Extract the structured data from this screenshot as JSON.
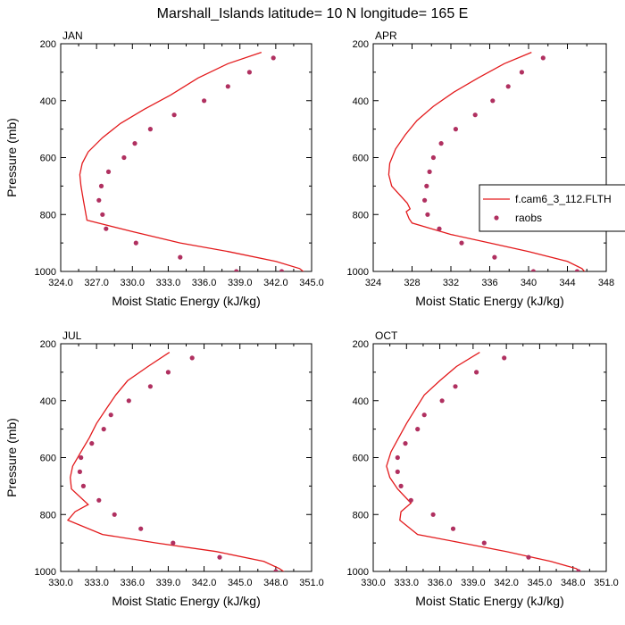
{
  "title": "Marshall_Islands  latitude= 10 N longitude= 165 E",
  "colors": {
    "model": "#e31a1c",
    "obs": "#b03060",
    "axis": "#000000"
  },
  "legend": {
    "model_label": "f.cam6_3_112.FLTH",
    "obs_label": "raobs"
  },
  "chart_data": [
    {
      "type": "line",
      "panel": "JAN",
      "title": "JAN",
      "xlabel": "Moist Static Energy (kJ/kg)",
      "ylabel": "Pressure (mb)",
      "xlim": [
        324,
        345
      ],
      "ylim": [
        1000,
        200
      ],
      "xticks": [
        324,
        327,
        330,
        333,
        336,
        339,
        342,
        345
      ],
      "xtick_labels": [
        "324.0",
        "327.0",
        "330.0",
        "333.0",
        "336.0",
        "339.0",
        "342.0",
        "345.0"
      ],
      "yticks": [
        200,
        400,
        600,
        800,
        1000
      ],
      "ytick_labels": [
        "200",
        "400",
        "600",
        "800",
        "1000"
      ],
      "series": [
        {
          "name": "f.cam6_3_112.FLTH",
          "kind": "line",
          "x": [
            340.8,
            338.0,
            335.5,
            333.2,
            331.0,
            329.0,
            327.5,
            326.3,
            325.8,
            325.6,
            325.7,
            325.9,
            326.2,
            330.0,
            334.0,
            338.0,
            342.0,
            344.0,
            344.6
          ],
          "y": [
            230,
            270,
            320,
            380,
            430,
            480,
            530,
            580,
            620,
            660,
            700,
            750,
            820,
            860,
            900,
            930,
            965,
            990,
            1010
          ]
        },
        {
          "name": "raobs",
          "kind": "scatter",
          "x": [
            341.8,
            339.8,
            338.0,
            336.0,
            333.5,
            331.5,
            330.2,
            329.3,
            328.0,
            327.4,
            327.2,
            327.5,
            327.8,
            330.3,
            334.0,
            338.7,
            342.5
          ],
          "y": [
            250,
            300,
            350,
            400,
            450,
            500,
            550,
            600,
            650,
            700,
            750,
            800,
            850,
            900,
            950,
            1000,
            1000
          ]
        }
      ]
    },
    {
      "type": "line",
      "panel": "APR",
      "title": "APR",
      "xlabel": "Moist Static Energy (kJ/kg)",
      "ylabel": "",
      "xlim": [
        324,
        348
      ],
      "ylim": [
        1000,
        200
      ],
      "xticks": [
        324,
        328,
        332,
        336,
        340,
        344,
        348
      ],
      "xtick_labels": [
        "324",
        "328",
        "332",
        "336",
        "340",
        "344",
        "348"
      ],
      "yticks": [
        200,
        400,
        600,
        800,
        1000
      ],
      "ytick_labels": [
        "200",
        "400",
        "600",
        "800",
        "1000"
      ],
      "series": [
        {
          "name": "f.cam6_3_112.FLTH",
          "kind": "line",
          "x": [
            340.3,
            337.5,
            334.8,
            332.3,
            330.2,
            328.5,
            327.3,
            326.3,
            325.7,
            325.6,
            325.9,
            327.5,
            327.8,
            327.4,
            327.7,
            328.0,
            332.0,
            336.0,
            340.0,
            344.0,
            345.5,
            346.0
          ],
          "y": [
            230,
            270,
            320,
            370,
            420,
            470,
            520,
            570,
            620,
            660,
            700,
            760,
            780,
            790,
            815,
            830,
            870,
            900,
            930,
            965,
            990,
            1010
          ]
        },
        {
          "name": "raobs",
          "kind": "scatter",
          "x": [
            341.5,
            339.3,
            337.9,
            336.3,
            334.5,
            332.5,
            331.0,
            330.2,
            329.8,
            329.5,
            329.3,
            329.6,
            330.8,
            333.1,
            336.5,
            340.5,
            345.0
          ],
          "y": [
            250,
            300,
            350,
            400,
            450,
            500,
            550,
            600,
            650,
            700,
            750,
            800,
            850,
            900,
            950,
            1000,
            1000
          ]
        }
      ]
    },
    {
      "type": "line",
      "panel": "JUL",
      "title": "JUL",
      "xlabel": "Moist Static Energy (kJ/kg)",
      "ylabel": "Pressure (mb)",
      "xlim": [
        330,
        351
      ],
      "ylim": [
        1000,
        200
      ],
      "xticks": [
        330,
        333,
        336,
        339,
        342,
        345,
        348,
        351
      ],
      "xtick_labels": [
        "330.0",
        "333.0",
        "336.0",
        "339.0",
        "342.0",
        "345.0",
        "348.0",
        "351.0"
      ],
      "yticks": [
        200,
        400,
        600,
        800,
        1000
      ],
      "ytick_labels": [
        "200",
        "400",
        "600",
        "800",
        "1000"
      ],
      "series": [
        {
          "name": "f.cam6_3_112.FLTH",
          "kind": "line",
          "x": [
            339.1,
            337.3,
            335.6,
            334.6,
            333.8,
            333.0,
            332.4,
            331.7,
            331.0,
            330.8,
            330.9,
            332.3,
            331.2,
            330.6,
            333.5,
            338.0,
            343.0,
            347.0,
            348.3,
            349.0
          ],
          "y": [
            230,
            280,
            330,
            380,
            430,
            480,
            530,
            580,
            630,
            670,
            710,
            765,
            790,
            820,
            870,
            900,
            930,
            965,
            990,
            1010
          ]
        },
        {
          "name": "raobs",
          "kind": "scatter",
          "x": [
            341.0,
            339.0,
            337.5,
            335.7,
            334.2,
            333.6,
            332.6,
            331.7,
            331.6,
            331.9,
            333.2,
            334.5,
            336.7,
            339.4,
            343.3,
            348.0
          ],
          "y": [
            250,
            300,
            350,
            400,
            450,
            500,
            550,
            600,
            650,
            700,
            750,
            800,
            850,
            900,
            950,
            1000
          ]
        }
      ]
    },
    {
      "type": "line",
      "panel": "OCT",
      "title": "OCT",
      "xlabel": "Moist Static Energy (kJ/kg)",
      "ylabel": "",
      "xlim": [
        330,
        351
      ],
      "ylim": [
        1000,
        200
      ],
      "xticks": [
        330,
        333,
        336,
        339,
        342,
        345,
        348,
        351
      ],
      "xtick_labels": [
        "330.0",
        "333.0",
        "336.0",
        "339.0",
        "342.0",
        "345.0",
        "348.0",
        "351.0"
      ],
      "yticks": [
        200,
        400,
        600,
        800,
        1000
      ],
      "ytick_labels": [
        "200",
        "400",
        "600",
        "800",
        "1000"
      ],
      "series": [
        {
          "name": "f.cam6_3_112.FLTH",
          "kind": "line",
          "x": [
            339.6,
            337.5,
            336.0,
            334.6,
            333.8,
            333.0,
            332.3,
            331.6,
            331.2,
            331.5,
            332.2,
            333.4,
            332.5,
            332.4,
            334.0,
            338.0,
            342.0,
            346.0,
            348.3,
            349.0
          ],
          "y": [
            230,
            280,
            330,
            380,
            430,
            480,
            530,
            580,
            630,
            670,
            710,
            760,
            790,
            820,
            870,
            900,
            930,
            965,
            990,
            1010
          ]
        },
        {
          "name": "raobs",
          "kind": "scatter",
          "x": [
            341.8,
            339.3,
            337.4,
            336.2,
            334.6,
            334.0,
            332.9,
            332.2,
            332.2,
            332.5,
            333.4,
            335.4,
            337.2,
            340.0,
            344.0,
            348.5
          ],
          "y": [
            250,
            300,
            350,
            400,
            450,
            500,
            550,
            600,
            650,
            700,
            750,
            800,
            850,
            900,
            950,
            1000
          ]
        }
      ]
    }
  ]
}
